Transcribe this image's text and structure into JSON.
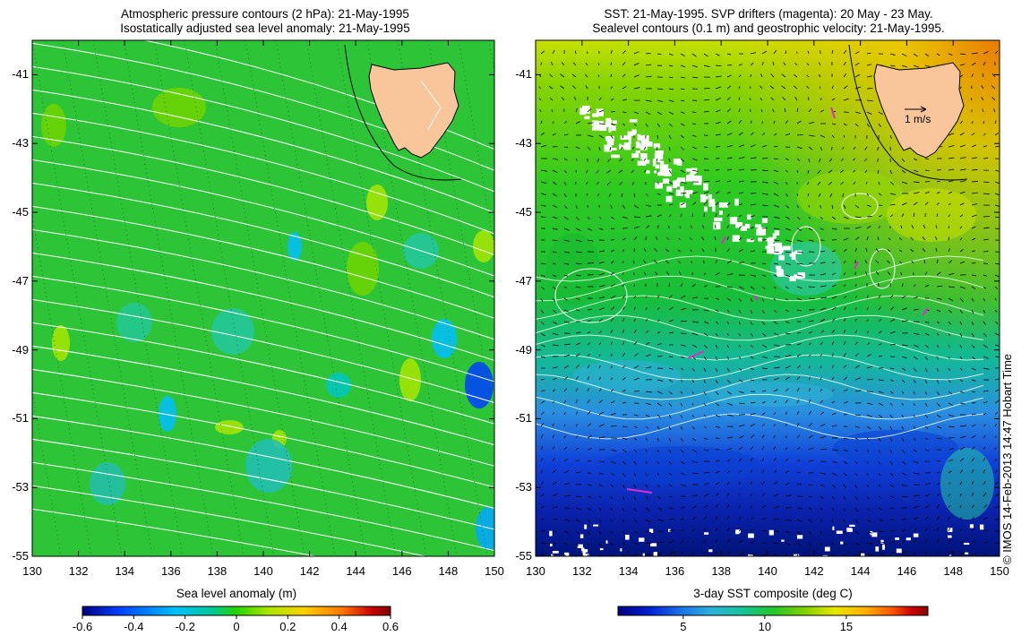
{
  "left_panel": {
    "title_line1": "Atmospheric pressure contours (2 hPa): 21-May-1995",
    "title_line2": "Isostatically adjusted sea level anomaly: 21-May-1995",
    "colorbar_title": "Sea level anomaly (m)",
    "colorbar_ticks": [
      "-0.6",
      "-0.4",
      "-0.2",
      "0",
      "0.2",
      "0.4",
      "0.6"
    ],
    "colorbar_range": [
      -0.6,
      0.6
    ]
  },
  "right_panel": {
    "title_line1": "SST: 21-May-1995. SVP drifters (magenta): 20 May - 23 May.",
    "title_line2": "Sealevel contours (0.1 m) and geostrophic velocity: 21-May-1995.",
    "colorbar_title": "3-day SST composite (deg C)",
    "colorbar_ticks": [
      "5",
      "10",
      "15"
    ],
    "colorbar_range": [
      1,
      20
    ],
    "velocity_scale_label": "1 m/s"
  },
  "axes": {
    "x_ticks": [
      "130",
      "132",
      "134",
      "136",
      "138",
      "140",
      "142",
      "144",
      "146",
      "148",
      "150"
    ],
    "y_ticks": [
      "-41",
      "-43",
      "-45",
      "-47",
      "-49",
      "-51",
      "-53",
      "-55"
    ],
    "lon_range": [
      130,
      150
    ],
    "lat_range": [
      -55,
      -40
    ]
  },
  "credit": "© IMOS 14-Feb-2013 14:47 Hobart Time",
  "colors": {
    "land": "#f9c59a",
    "sla_colormap": [
      "#00007f",
      "#0040ff",
      "#00bfff",
      "#00c896",
      "#24d400",
      "#a8e600",
      "#ffd000",
      "#ff7a00",
      "#c80000",
      "#800000"
    ],
    "sst_colormap": [
      "#00007f",
      "#0020d0",
      "#1a6fe8",
      "#2fb0d9",
      "#14c49a",
      "#22c62a",
      "#7ed200",
      "#e8e600",
      "#ffb000",
      "#ff5a00",
      "#c80000",
      "#8a0000"
    ],
    "drifter": "#e02bd0"
  }
}
